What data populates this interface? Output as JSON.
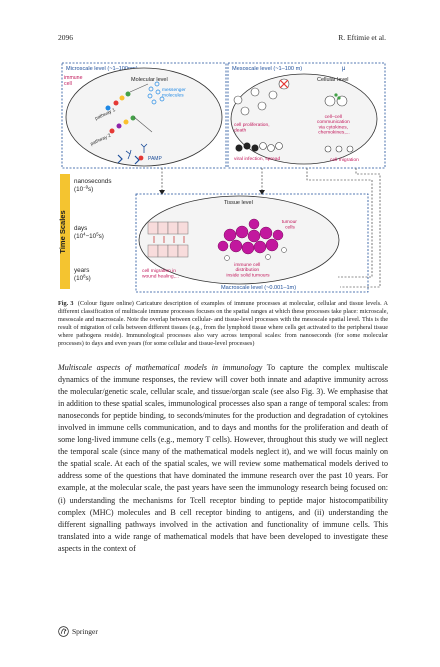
{
  "header": {
    "page_number": "2096",
    "author": "R. Eftimie et al."
  },
  "figure": {
    "microscale_label": "Microscale level (~1–100nm)",
    "mesoscale_label": "Mesoscale level (~1–100 m)",
    "mu_symbol": "μ",
    "macroscale_label": "Macroscale level (~0.001–1m)",
    "immune_cell": [
      "immune",
      "cell"
    ],
    "molecular_level": "Molecular level",
    "messenger_molecules": [
      "messenger",
      "molecules"
    ],
    "pathway1": "pathway 1",
    "pathway2": "pathway 2",
    "pamp": "PAMP",
    "cellular_level": "Cellular level",
    "cell_proliferation": [
      "cell proliferation,",
      "death"
    ],
    "cell_communication": [
      "cell–cell",
      "communication",
      "via cytokines,",
      "chemokines,..."
    ],
    "viral_infection": "viral infection, spread",
    "cell_migration": "cell migration",
    "tissue_level": "Tissue level",
    "tumour_cells": [
      "tumour",
      "cells"
    ],
    "immune_distribution": [
      "immune cell",
      "distribution",
      "inside solid tumours"
    ],
    "wound_healing": [
      "cell migration in",
      "wound healing,..."
    ],
    "time_scales": "Time Scales",
    "nanoseconds": [
      "nanoseconds",
      "(10",
      "−9",
      "s)"
    ],
    "days": [
      "days",
      "(10",
      "4",
      "−10",
      "5",
      "s)"
    ],
    "years": [
      "years",
      "(10",
      "8",
      "s)"
    ]
  },
  "caption": {
    "label": "Fig. 3",
    "text": "(Colour figure online) Caricature description of examples of immune processes at molecular, cellular and tissue levels. A different classification of multiscale immune processes focuses on the spatial ranges at which these processes take place: microscale, mesoscale and macroscale. Note the overlap between cellular- and tissue-level processes with the mesoscale spatial level. This is the result of migration of cells between different tissues (e.g., from the lymphoid tissue where cells get activated to the peripheral tissue where pathogens reside). Immunological processes also vary across temporal scales: from nanoseconds (for some molecular processes) to days and even years (for some cellular and tissue-level processes)"
  },
  "body": {
    "heading": "Multiscale aspects of mathematical models in immunology",
    "text": " To capture the complex multiscale dynamics of the immune responses, the review will cover both innate and adaptive immunity across the molecular/genetic scale, cellular scale, and tissue/organ scale (see also Fig. 3). We emphasise that in addition to these spatial scales, immunological processes also span a range of temporal scales: from nanoseconds for peptide binding, to seconds/minutes for the production and degradation of cytokines involved in immune cells communication, and to days and months for the proliferation and death of some long-lived immune cells (e.g., memory T cells). However, throughout this study we will neglect the temporal scale (since many of the mathematical models neglect it), and we will focus mainly on the spatial scale. At each of the spatial scales, we will review some mathematical models derived to address some of the questions that have dominated the immune research over the past 10 years. For example, at the molecular scale, the past years have seen the immunology research being focused on: (i) understanding the mechanisms for Tcell receptor binding to peptide major histocompatibility complex (MHC) molecules and B cell receptor binding to antigens, and (ii) understanding the different signalling pathways involved in the activation and functionality of immune cells. This translated into a wide range of mathematical models that have been developed to investigate these aspects in the context of"
  },
  "footer": {
    "publisher": "Springer"
  }
}
